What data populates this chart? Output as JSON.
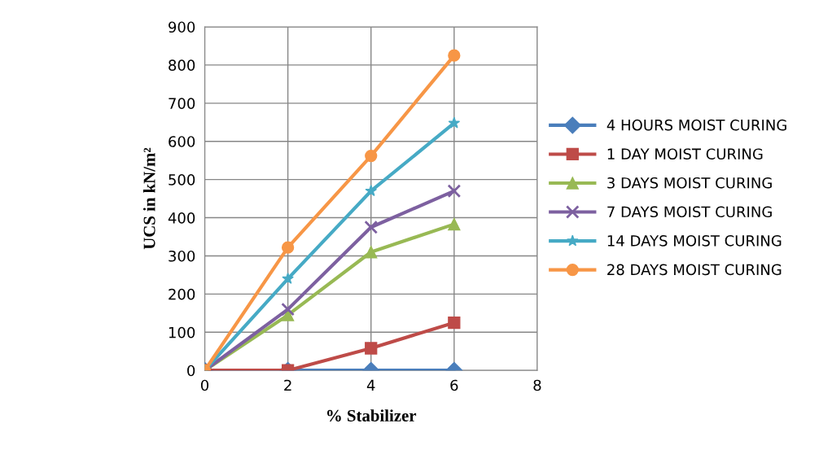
{
  "chart_data": {
    "type": "line",
    "xlabel": "% Stabilizer",
    "ylabel": "UCS in kN/m²",
    "x": [
      0,
      2,
      4,
      6
    ],
    "xlim": [
      0,
      8
    ],
    "xticks": [
      0,
      2,
      4,
      6,
      8
    ],
    "ylim": [
      0,
      900
    ],
    "yticks": [
      0,
      100,
      200,
      300,
      400,
      500,
      600,
      700,
      800,
      900
    ],
    "grid": true,
    "legend": "right",
    "line_style": "solid",
    "series": [
      {
        "name": "4 HOURS MOIST CURING",
        "color": "#4a7ebb",
        "marker": "diamond",
        "values": [
          0,
          0,
          0,
          0
        ]
      },
      {
        "name": "1 DAY MOIST CURING",
        "color": "#be4b48",
        "marker": "square",
        "values": [
          0,
          0,
          58,
          125
        ]
      },
      {
        "name": "3 DAYS MOIST CURING",
        "color": "#98b954",
        "marker": "triangle",
        "values": [
          0,
          145,
          310,
          383
        ]
      },
      {
        "name": "7 DAYS MOIST CURING",
        "color": "#7d60a0",
        "marker": "cross",
        "values": [
          0,
          160,
          375,
          470
        ]
      },
      {
        "name": "14 DAYS MOIST CURING",
        "color": "#46aac5",
        "marker": "star",
        "values": [
          0,
          240,
          470,
          648
        ]
      },
      {
        "name": "28 DAYS MOIST CURING",
        "color": "#f79646",
        "marker": "circle",
        "values": [
          0,
          322,
          562,
          825
        ]
      }
    ]
  }
}
